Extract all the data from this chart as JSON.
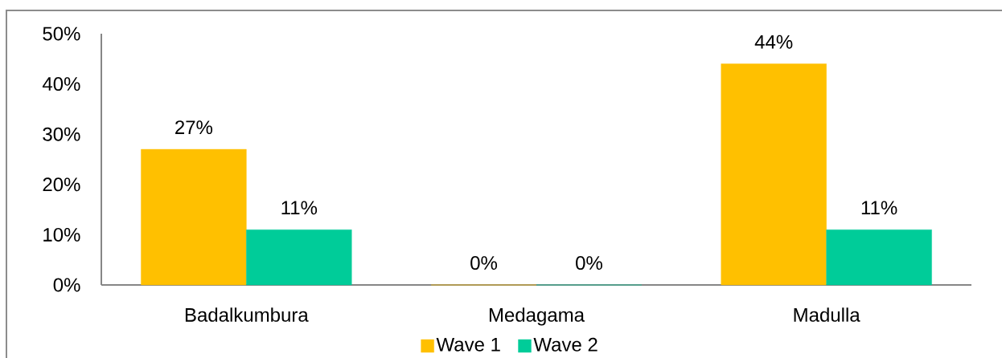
{
  "chart_data": {
    "type": "bar",
    "categories": [
      "Badalkumbura",
      "Medagama",
      "Madulla"
    ],
    "series": [
      {
        "name": "Wave 1",
        "color": "#ffc000",
        "values": [
          27,
          0,
          44
        ],
        "value_labels": [
          "27%",
          "0%",
          "44%"
        ]
      },
      {
        "name": "Wave 2",
        "color": "#00cc99",
        "values": [
          11,
          0,
          11
        ],
        "value_labels": [
          "11%",
          "0%",
          "11%"
        ]
      }
    ],
    "ylim": [
      0,
      50
    ],
    "yticks": [
      {
        "value": 0,
        "label": "0%"
      },
      {
        "value": 10,
        "label": "10%"
      },
      {
        "value": 20,
        "label": "20%"
      },
      {
        "value": 30,
        "label": "30%"
      },
      {
        "value": 40,
        "label": "40%"
      },
      {
        "value": 50,
        "label": "50%"
      }
    ],
    "legend": "bottom"
  }
}
